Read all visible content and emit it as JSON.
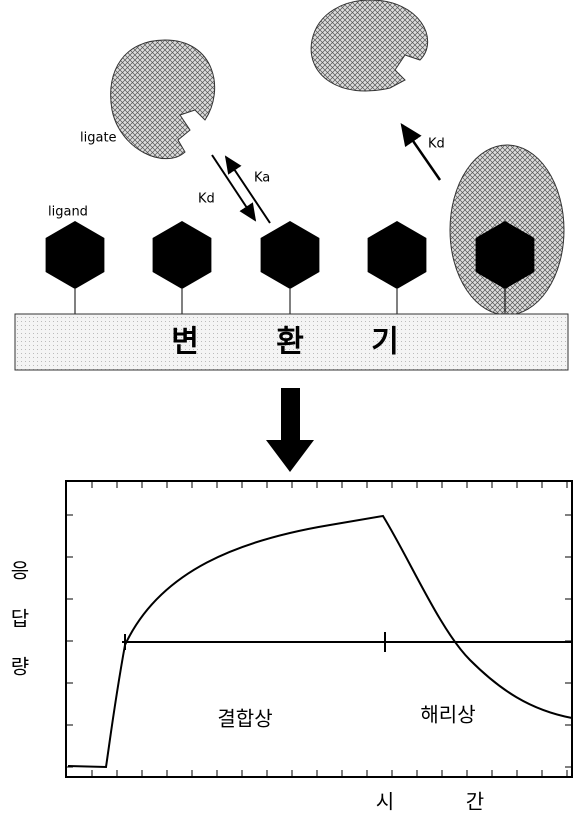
{
  "diagram": {
    "ligate_label": "ligate",
    "ligand_label": "ligand",
    "rate_labels": {
      "kd_left": "Kd",
      "ka": "Ka",
      "kd_right": "Kd"
    },
    "transducer": [
      "변",
      "환",
      "기"
    ],
    "y_axis_label": [
      "응",
      "답",
      "량"
    ],
    "phases": {
      "association": "결합상",
      "dissociation": "해리상"
    },
    "x_axis_label": [
      "시",
      "간"
    ]
  }
}
